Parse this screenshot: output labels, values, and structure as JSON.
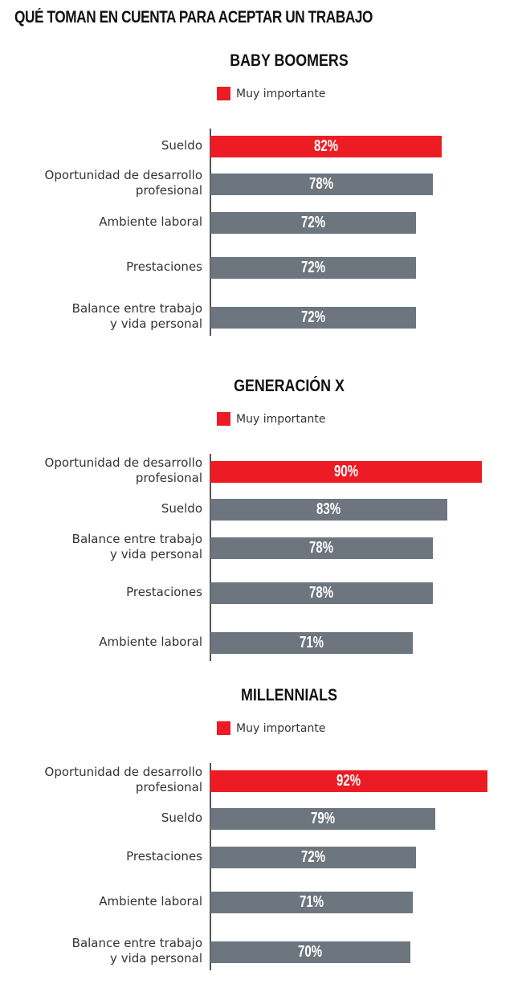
{
  "title": "QUÉ TOMAN EN CUENTA PARA ACEPTAR UN TRABAJO",
  "colors": {
    "highlight": "#ed1c24",
    "default": "#6d767e"
  },
  "chart_data": [
    {
      "type": "bar",
      "orientation": "horizontal",
      "title": "BABY BOOMERS",
      "legend": "Muy importante",
      "categories": [
        "Sueldo",
        "Oportunidad de desarrollo\nprofesional",
        "Ambiente laboral",
        "Prestaciones",
        "Balance entre trabajo\ny vida personal"
      ],
      "values": [
        82,
        78,
        72,
        72,
        72
      ],
      "labels": [
        "82%",
        "78%",
        "72%",
        "72%",
        "72%"
      ],
      "highlight_index": 0
    },
    {
      "type": "bar",
      "orientation": "horizontal",
      "title": "GENERACIÓN X",
      "legend": "Muy importante",
      "categories": [
        "Oportunidad de desarrollo\nprofesional",
        "Sueldo",
        "Balance entre trabajo\ny vida personal",
        "Prestaciones",
        "Ambiente laboral"
      ],
      "values": [
        90,
        83,
        78,
        78,
        71
      ],
      "labels": [
        "90%",
        "83%",
        "78%",
        "78%",
        "71%"
      ],
      "highlight_index": 0
    },
    {
      "type": "bar",
      "orientation": "horizontal",
      "title": "MILLENNIALS",
      "legend": "Muy importante",
      "categories": [
        "Oportunidad de desarrollo\nprofesional",
        "Sueldo",
        "Prestaciones",
        "Ambiente laboral",
        "Balance entre trabajo\ny vida personal"
      ],
      "values": [
        92,
        79,
        72,
        71,
        70
      ],
      "labels": [
        "92%",
        "79%",
        "72%",
        "71%",
        "70%"
      ],
      "highlight_index": 0
    }
  ]
}
